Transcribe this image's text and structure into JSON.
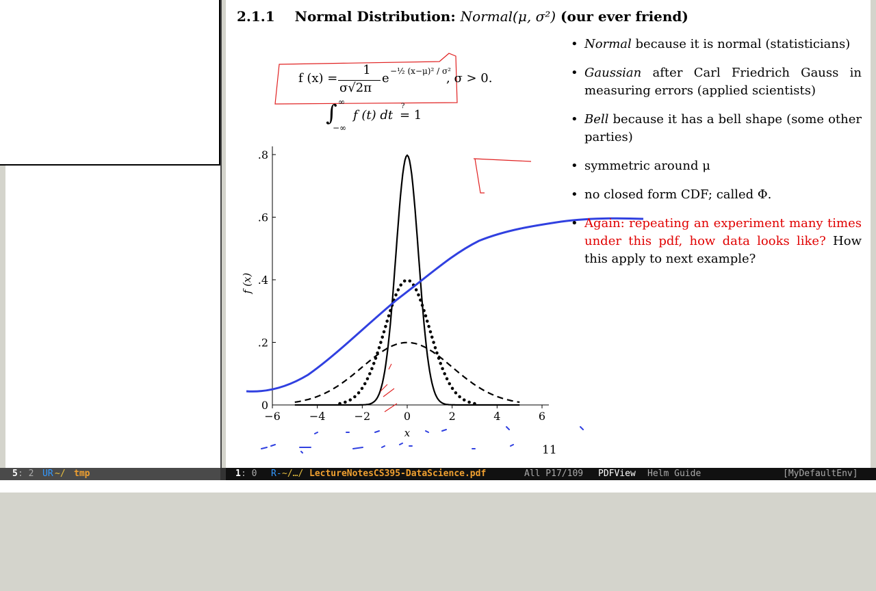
{
  "section": {
    "number": "2.1.1",
    "title_bold": "Normal Distribution:",
    "title_math": "Normal(μ, σ²)",
    "title_tail": "(our ever friend)"
  },
  "formulas": {
    "pdf_lhs": "f (x) =",
    "pdf_num": "1",
    "pdf_den": "σ√2π",
    "pdf_exp_base": "e",
    "pdf_exponent": "−½ (x−μ)² / σ²",
    "pdf_cond": ", σ > 0.",
    "integral": "∫",
    "integral_upper": "∞",
    "integral_lower": "−∞",
    "integral_body": "f (t)  dt",
    "integral_q": "?",
    "integral_rhs": "= 1"
  },
  "bullets": [
    {
      "em": "Normal",
      "text": " because it is normal (statisticians)"
    },
    {
      "em": "Gaussian",
      "text": " after Carl Friedrich Gauss in measuring errors (applied scientists)"
    },
    {
      "em": "Bell",
      "text": " because it has a bell shape (some other parties)"
    },
    {
      "em": "",
      "text": "symmetric around μ"
    },
    {
      "em": "",
      "text": "no closed form CDF; called Φ."
    },
    {
      "em": "",
      "red": "Again: repeating an experiment many times under this pdf, how data looks like?",
      "text": " How this apply to next example?"
    }
  ],
  "page_number": "11",
  "chart_data": {
    "type": "line",
    "xlabel": "x",
    "ylabel": "f (x)",
    "xlim": [
      -6,
      6
    ],
    "ylim": [
      0,
      0.8
    ],
    "x_ticks": [
      "−6",
      "−4",
      "−2",
      "0",
      "2",
      "4",
      "6"
    ],
    "y_ticks": [
      "0",
      ".2",
      ".4",
      ".6",
      ".8"
    ],
    "series": [
      {
        "style": "solid",
        "mu": 0,
        "sigma": 0.5,
        "x_range": [
          -5,
          5
        ]
      },
      {
        "style": "dotted",
        "mu": 0,
        "sigma": 1,
        "x_range": [
          -3,
          3
        ]
      },
      {
        "style": "dashed",
        "mu": 0,
        "sigma": 2,
        "x_range": [
          -5,
          5
        ]
      }
    ]
  },
  "modeline_left": {
    "line": "5",
    "col": ": 2",
    "flags": "UR",
    "dir": "~/",
    "file": "tmp"
  },
  "modeline_right": {
    "line": "1",
    "col": ": 0",
    "flags": "R-",
    "path": "~/…/",
    "file": "LectureNotesCS395-DataScience.pdf",
    "position": "All P17/109",
    "mode": "PDFView",
    "minor": "Helm Guide",
    "env": "[MyDefaultEnv]"
  },
  "colors": {
    "annotation_red": "#e02020",
    "annotation_blue": "#3040e0",
    "red_text": "#e00000"
  }
}
